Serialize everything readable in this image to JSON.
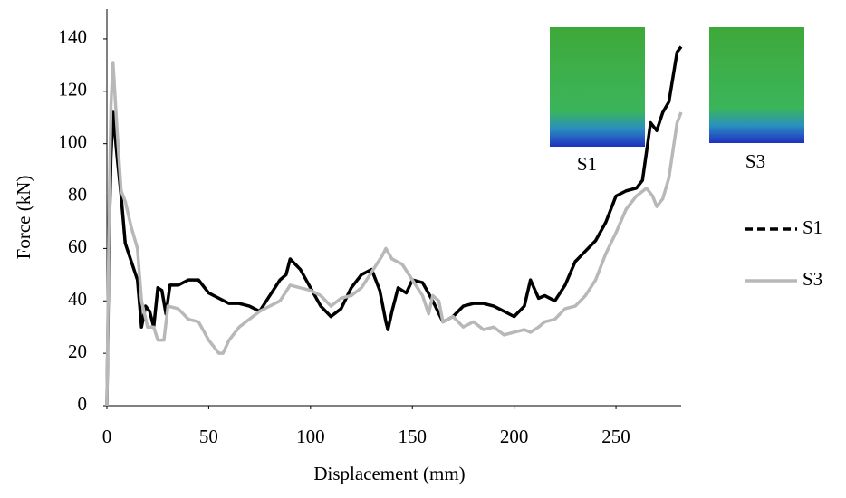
{
  "chart_data": {
    "type": "line",
    "xlabel": "Displacement (mm)",
    "ylabel": "Force (kN)",
    "annotations": [
      "S1",
      "S3"
    ],
    "xlim": [
      0,
      282
    ],
    "xticks": [
      0,
      50,
      100,
      150,
      200,
      250
    ],
    "ylim": [
      0,
      150
    ],
    "yticks": [
      0,
      20,
      40,
      60,
      80,
      100,
      120,
      140
    ],
    "legend": "right",
    "series": [
      {
        "name": "S1",
        "color": "#000000",
        "line_style": "dashed",
        "x": [
          0,
          1,
          2,
          3,
          5,
          7,
          9,
          12,
          15,
          17,
          19,
          21,
          23,
          25,
          27,
          29,
          31,
          35,
          40,
          45,
          50,
          55,
          60,
          65,
          70,
          75,
          80,
          85,
          88,
          90,
          95,
          100,
          105,
          110,
          115,
          120,
          125,
          130,
          134,
          137,
          138,
          140,
          143,
          147,
          150,
          155,
          160,
          165,
          170,
          175,
          180,
          185,
          190,
          195,
          200,
          205,
          208,
          212,
          215,
          220,
          225,
          230,
          235,
          240,
          245,
          250,
          255,
          260,
          263,
          265,
          267,
          270,
          273,
          276,
          280,
          282
        ],
        "values": [
          0,
          60,
          95,
          112,
          95,
          80,
          62,
          55,
          48,
          30,
          38,
          36,
          30,
          45,
          44,
          35,
          46,
          46,
          48,
          48,
          43,
          41,
          39,
          39,
          38,
          36,
          42,
          48,
          50,
          56,
          52,
          45,
          38,
          34,
          37,
          45,
          50,
          52,
          44,
          32,
          29,
          36,
          45,
          43,
          48,
          47,
          40,
          32,
          34,
          38,
          39,
          39,
          38,
          36,
          34,
          38,
          48,
          41,
          42,
          40,
          46,
          55,
          59,
          63,
          70,
          80,
          82,
          83,
          86,
          97,
          108,
          105,
          112,
          116,
          135,
          137
        ]
      },
      {
        "name": "S3",
        "color": "#b8b8b8",
        "line_style": "solid",
        "x": [
          0,
          1,
          2,
          3,
          5,
          7,
          9,
          12,
          15,
          17,
          20,
          23,
          25,
          28,
          30,
          35,
          40,
          45,
          50,
          55,
          57,
          60,
          65,
          70,
          75,
          80,
          85,
          90,
          95,
          100,
          105,
          110,
          115,
          120,
          125,
          130,
          135,
          137,
          140,
          145,
          150,
          155,
          158,
          160,
          163,
          165,
          170,
          175,
          180,
          185,
          190,
          195,
          200,
          205,
          208,
          212,
          215,
          220,
          225,
          230,
          235,
          240,
          245,
          250,
          255,
          260,
          265,
          268,
          270,
          273,
          276,
          280,
          282
        ],
        "values": [
          0,
          70,
          115,
          131,
          105,
          82,
          78,
          68,
          60,
          40,
          30,
          30,
          25,
          25,
          38,
          37,
          33,
          32,
          25,
          20,
          20,
          25,
          30,
          33,
          36,
          38,
          40,
          46,
          45,
          44,
          42,
          38,
          41,
          42,
          45,
          51,
          57,
          60,
          56,
          54,
          48,
          42,
          35,
          42,
          40,
          32,
          34,
          30,
          32,
          29,
          30,
          27,
          28,
          29,
          28,
          30,
          32,
          33,
          37,
          38,
          42,
          48,
          58,
          66,
          75,
          80,
          83,
          80,
          76,
          79,
          87,
          108,
          112
        ]
      }
    ]
  }
}
